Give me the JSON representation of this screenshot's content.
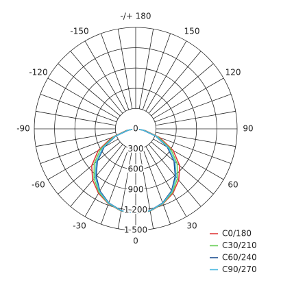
{
  "chart_data": {
    "type": "polar",
    "x": [
      -90,
      -80,
      -70,
      -60,
      -50,
      -40,
      -30,
      -20,
      -10,
      0,
      10,
      20,
      30,
      40,
      50,
      60,
      70,
      80,
      90
    ],
    "series": [
      {
        "name": "C0/180",
        "color": "#e03a3a",
        "values": [
          0,
          140,
          380,
          640,
          850,
          990,
          1100,
          1180,
          1235,
          1250,
          1235,
          1180,
          1100,
          990,
          850,
          640,
          380,
          140,
          0
        ]
      },
      {
        "name": "C30/210",
        "color": "#6ccf5a",
        "values": [
          0,
          130,
          350,
          600,
          800,
          960,
          1085,
          1175,
          1232,
          1250,
          1232,
          1175,
          1085,
          960,
          800,
          600,
          350,
          130,
          0
        ]
      },
      {
        "name": "C60/240",
        "color": "#1d4f8f",
        "values": [
          0,
          110,
          320,
          540,
          740,
          910,
          1060,
          1165,
          1228,
          1250,
          1228,
          1165,
          1060,
          910,
          740,
          540,
          320,
          110,
          0
        ]
      },
      {
        "name": "C90/270",
        "color": "#4bb8e0",
        "values": [
          0,
          120,
          330,
          560,
          760,
          930,
          1070,
          1170,
          1230,
          1250,
          1230,
          1170,
          1070,
          930,
          760,
          560,
          330,
          120,
          0
        ]
      }
    ],
    "xticks": [
      {
        "value": 180,
        "label": "-/+ 180"
      },
      -150,
      150,
      -120,
      120,
      -90,
      90,
      -60,
      60,
      -30,
      30,
      0
    ],
    "rlim": [
      0,
      1500
    ],
    "rticks": [
      0,
      300,
      600,
      900,
      {
        "value": 1200,
        "label": "1 200"
      },
      {
        "value": 1500,
        "label": "1 500"
      }
    ],
    "legend": "lower right"
  }
}
